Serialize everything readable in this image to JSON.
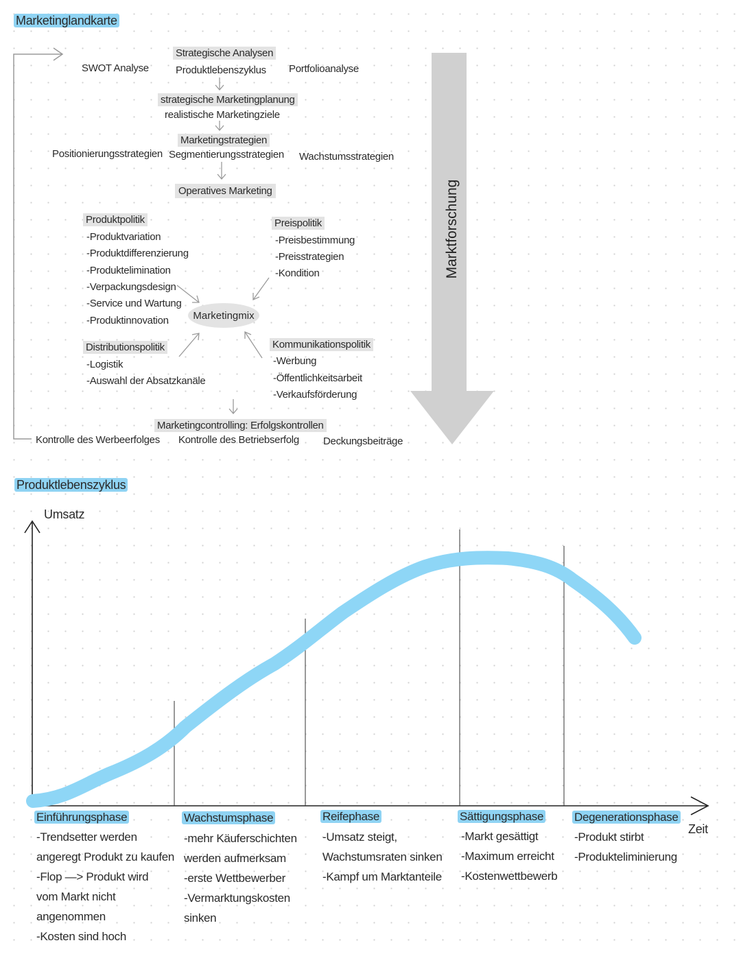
{
  "map": {
    "title": "Marketinglandkarte",
    "swot": "SWOT Analyse",
    "strategic_analyses": "Strategische Analysen",
    "plc": "Produktlebenszyklus",
    "portfolio": "Portfolioanalyse",
    "strategic_planning": "strategische Marketingplanung",
    "realistic_goals": "realistische Marketingziele",
    "positioning": "Positionierungsstrategien",
    "marketing_strategies": "Marketingstrategien",
    "segmentation": "Segmentierungsstrategien",
    "growth": "Wachstumsstrategien",
    "operative": "Operatives Marketing",
    "product_policy": {
      "title": "Produktpolitik",
      "items": [
        "-Produktvariation",
        "-Produktdifferenzierung",
        "-Produktelimination",
        "-Verpackungsdesign",
        "-Service und Wartung",
        "-Produktinnovation"
      ]
    },
    "price_policy": {
      "title": "Preispolitik",
      "items": [
        "-Preisbestimmung",
        "-Preisstrategien",
        "-Kondition"
      ]
    },
    "marketing_mix": "Marketingmix",
    "distribution_policy": {
      "title": "Distributionspolitik",
      "items": [
        "-Logistik",
        "-Auswahl der Absatzkanäle"
      ]
    },
    "communication_policy": {
      "title": "Kommunikationspolitik",
      "items": [
        "-Werbung",
        "-Öffentlichkeitsarbeit",
        "-Verkaufsförderung"
      ]
    },
    "controlling": "Marketingcontrolling: Erfolgskontrollen",
    "business_control": "Kontrolle des Betriebserfolg",
    "ad_control": "Kontrolle des Werbeerfolges",
    "contribution": "Deckungsbeiträge",
    "market_research": "Marktforschung"
  },
  "plc_section": {
    "title": "Produktlebenszyklus",
    "y_axis": "Umsatz",
    "x_axis": "Zeit",
    "phases": [
      {
        "name": "Einführungsphase",
        "lines": [
          "-Trendsetter werden",
          "angeregt Produkt zu kaufen",
          "-Flop —> Produkt wird",
          "vom Markt nicht",
          "angenommen",
          "-Kosten sind hoch"
        ]
      },
      {
        "name": "Wachstumsphase",
        "lines": [
          "-mehr Käuferschichten",
          "werden aufmerksam",
          "-erste Wettbewerber",
          "-Vermarktungskosten",
          "sinken"
        ]
      },
      {
        "name": "Reifephase",
        "lines": [
          "-Umsatz steigt,",
          "Wachstumsraten sinken",
          "-Kampf um Marktanteile"
        ]
      },
      {
        "name": "Sättigungsphase",
        "lines": [
          "-Markt gesättigt",
          "-Maximum erreicht",
          "-Kostenwettbewerb"
        ]
      },
      {
        "name": "Degenerationsphase",
        "lines": [
          "-Produkt stirbt",
          "-Produkteliminierung"
        ]
      }
    ]
  },
  "colors": {
    "highlight_blue": "#8fd3f3",
    "curve_blue": "#8ed6f6",
    "box_grey": "#e3e3e3",
    "arrow_grey": "#d0d0d0"
  }
}
